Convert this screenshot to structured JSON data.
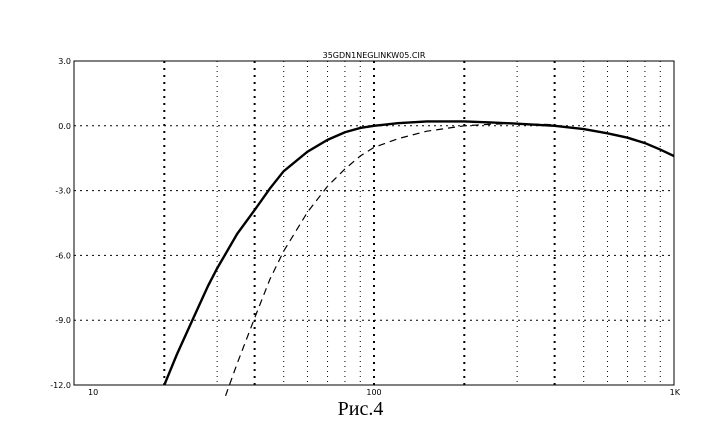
{
  "chart_data": {
    "type": "line",
    "title": "35GDN1NEGLINKW05.CIR",
    "x_scale": "log",
    "xlim": [
      10,
      1000
    ],
    "ylim": [
      -12,
      3
    ],
    "x_ticks": [
      10,
      100,
      1000
    ],
    "x_tick_labels": [
      "10",
      "100",
      "1K"
    ],
    "y_ticks": [
      3,
      0,
      -3,
      -6,
      -9,
      -12
    ],
    "y_tick_labels": [
      "3.0",
      "0.0",
      "-3.0",
      "-6.0",
      "-9.0",
      "-12.0"
    ],
    "grid": true,
    "series": [
      {
        "style": "solid",
        "color": "#000000",
        "x": [
          20,
          22,
          25,
          28,
          30,
          35,
          40,
          45,
          50,
          60,
          70,
          80,
          90,
          100,
          120,
          150,
          200,
          250,
          300,
          400,
          500,
          600,
          700,
          800,
          900,
          1000
        ],
        "y": [
          -12.0,
          -10.6,
          -8.9,
          -7.4,
          -6.6,
          -5.0,
          -3.9,
          -2.9,
          -2.1,
          -1.2,
          -0.65,
          -0.3,
          -0.1,
          0.0,
          0.12,
          0.2,
          0.2,
          0.15,
          0.1,
          0.0,
          -0.15,
          -0.35,
          -0.55,
          -0.8,
          -1.1,
          -1.4
        ]
      },
      {
        "style": "dashed",
        "color": "#000000",
        "x": [
          32,
          35,
          40,
          45,
          50,
          60,
          70,
          80,
          90,
          100,
          120,
          150,
          200,
          250,
          300,
          400
        ],
        "y": [
          -12.5,
          -11.0,
          -8.9,
          -7.1,
          -5.8,
          -4.0,
          -2.8,
          -2.0,
          -1.4,
          -1.0,
          -0.6,
          -0.25,
          0.0,
          0.08,
          0.1,
          0.05
        ]
      }
    ]
  },
  "caption": "Рис.4"
}
